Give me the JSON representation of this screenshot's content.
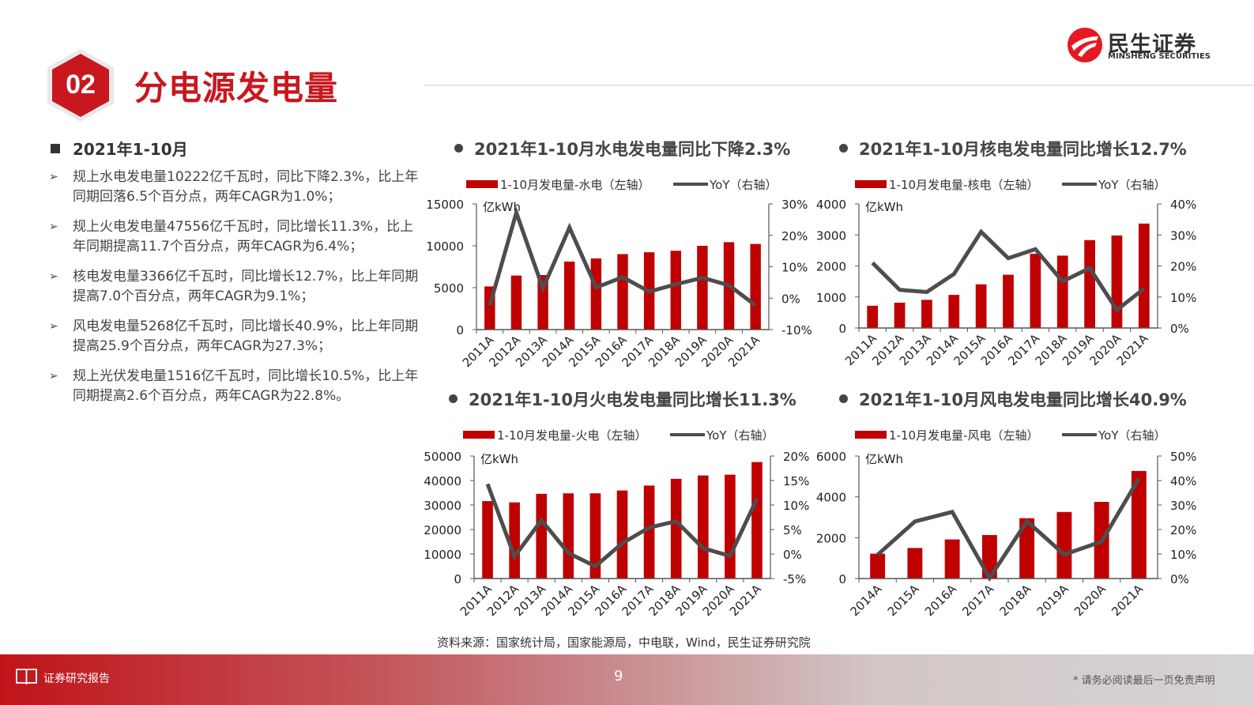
{
  "header": {
    "section_number": "02",
    "title": "分电源发电量",
    "logo_cn": "民生证券",
    "logo_en": "MINSHENG SECURITIES"
  },
  "summary": {
    "heading": "2021年1-10月",
    "bullets": [
      "规上水电发电量10222亿千瓦时，同比下降2.3%，比上年同期回落6.5个百分点，两年CAGR为1.0%；",
      "规上火电发电量47556亿千瓦时，同比增长11.3%，比上年同期提高11.7个百分点，两年CAGR为6.4%；",
      "核电发电量3366亿千瓦时，同比增长12.7%，比上年同期提高7.0个百分点，两年CAGR为9.1%；",
      "风电发电量5268亿千瓦时，同比增长40.9%，比上年同期提高25.9个百分点，两年CAGR为27.3%；",
      "规上光伏发电量1516亿千瓦时，同比增长10.5%，比上年同期提高2.6个百分点，两年CAGR为22.8%。"
    ]
  },
  "colors": {
    "bar": "#c00000",
    "line": "#4d4d4d",
    "accent": "#c8171e"
  },
  "chart_data": [
    {
      "type": "bar+line",
      "title": "2021年1-10月水电发电量同比下降2.3%",
      "unit_label": "亿kWh",
      "legend": [
        "1-10月发电量-水电（左轴）",
        "YoY（右轴）"
      ],
      "legend_placement": "top",
      "categories": [
        "2011A",
        "2012A",
        "2013A",
        "2014A",
        "2015A",
        "2016A",
        "2017A",
        "2018A",
        "2019A",
        "2020A",
        "2021A"
      ],
      "series": [
        {
          "name": "1-10月发电量-水电（左轴）",
          "type": "bar",
          "axis": "left",
          "values": [
            5150,
            6450,
            6510,
            8120,
            8490,
            9010,
            9230,
            9410,
            10000,
            10430,
            10222
          ]
        },
        {
          "name": "YoY（右轴）",
          "type": "line",
          "axis": "right",
          "values": [
            -2.4,
            27.2,
            3.1,
            22.5,
            3.4,
            6.7,
            2.1,
            4.4,
            6.5,
            4.1,
            -2.3
          ]
        }
      ],
      "left_axis": {
        "min": 0,
        "max": 15000,
        "ticks": [
          "0",
          "5000",
          "10000",
          "15000"
        ]
      },
      "right_axis": {
        "min": -10,
        "max": 30,
        "ticks": [
          "-10%",
          "0%",
          "10%",
          "20%",
          "30%"
        ]
      },
      "grid": false
    },
    {
      "type": "bar+line",
      "title": "2021年1-10月核电发电量同比增长12.7%",
      "unit_label": "亿kWh",
      "legend": [
        "1-10月发电量-核电（左轴）",
        "YoY（右轴）"
      ],
      "legend_placement": "top",
      "categories": [
        "2011A",
        "2012A",
        "2013A",
        "2014A",
        "2015A",
        "2016A",
        "2017A",
        "2018A",
        "2019A",
        "2020A",
        "2021A"
      ],
      "series": [
        {
          "name": "1-10月发电量-核电（左轴）",
          "type": "bar",
          "axis": "left",
          "values": [
            717,
            817,
            908,
            1067,
            1408,
            1717,
            2392,
            2333,
            2833,
            2983,
            3366
          ]
        },
        {
          "name": "YoY（右轴）",
          "type": "line",
          "axis": "right",
          "values": [
            21.0,
            12.3,
            11.6,
            17.4,
            31.0,
            22.5,
            25.4,
            15.0,
            19.3,
            5.8,
            12.7
          ]
        }
      ],
      "left_axis": {
        "min": 0,
        "max": 4000,
        "ticks": [
          "0",
          "1000",
          "2000",
          "3000",
          "4000"
        ]
      },
      "right_axis": {
        "min": 0,
        "max": 40,
        "ticks": [
          "0%",
          "10%",
          "20%",
          "30%",
          "40%"
        ]
      },
      "grid": false
    },
    {
      "type": "bar+line",
      "title": "2021年1-10月火电发电量同比增长11.3%",
      "unit_label": "亿kWh",
      "legend": [
        "1-10月发电量-火电（左轴）",
        "YoY（右轴）"
      ],
      "legend_placement": "top",
      "categories": [
        "2011A",
        "2012A",
        "2013A",
        "2014A",
        "2015A",
        "2016A",
        "2017A",
        "2018A",
        "2019A",
        "2020A",
        "2021A"
      ],
      "series": [
        {
          "name": "1-10月发电量-火电（左轴）",
          "type": "bar",
          "axis": "left",
          "values": [
            31600,
            31080,
            34570,
            34780,
            34780,
            35940,
            37950,
            40700,
            42070,
            42390,
            47556
          ]
        },
        {
          "name": "YoY（右轴）",
          "type": "line",
          "axis": "right",
          "values": [
            14.3,
            -0.5,
            6.9,
            0.2,
            -2.5,
            2.2,
            5.4,
            6.7,
            1.2,
            -0.4,
            11.3
          ]
        }
      ],
      "left_axis": {
        "min": 0,
        "max": 50000,
        "ticks": [
          "0",
          "10000",
          "20000",
          "30000",
          "40000",
          "50000"
        ]
      },
      "right_axis": {
        "min": -5,
        "max": 20,
        "ticks": [
          "-5%",
          "0%",
          "5%",
          "10%",
          "15%",
          "20%"
        ]
      },
      "grid": false
    },
    {
      "type": "bar+line",
      "title": "2021年1-10月风电发电量同比增长40.9%",
      "unit_label": "亿kWh",
      "legend": [
        "1-10月发电量-风电（左轴）",
        "YoY（右轴）"
      ],
      "legend_placement": "top",
      "categories": [
        "2014A",
        "2015A",
        "2016A",
        "2017A",
        "2018A",
        "2019A",
        "2020A",
        "2021A"
      ],
      "series": [
        {
          "name": "1-10月发电量-风电（左轴）",
          "type": "bar",
          "axis": "left",
          "values": [
            1218,
            1497,
            1915,
            2131,
            2955,
            3260,
            3754,
            5268
          ]
        },
        {
          "name": "YoY（右轴）",
          "type": "line",
          "axis": "right",
          "values": [
            9.7,
            23.3,
            27.2,
            0.2,
            23.4,
            9.8,
            15.1,
            40.9
          ]
        }
      ],
      "left_axis": {
        "min": 0,
        "max": 6000,
        "ticks": [
          "0",
          "2000",
          "4000",
          "6000"
        ]
      },
      "right_axis": {
        "min": 0,
        "max": 50,
        "ticks": [
          "0%",
          "10%",
          "20%",
          "30%",
          "40%",
          "50%"
        ]
      },
      "grid": false
    }
  ],
  "source": "资料来源：国家统计局，国家能源局，中电联，Wind，民生证券研究院",
  "footer": {
    "left_label": "证券研究报告",
    "page_number": "9",
    "disclaimer": "* 请务必阅读最后一页免责声明"
  }
}
